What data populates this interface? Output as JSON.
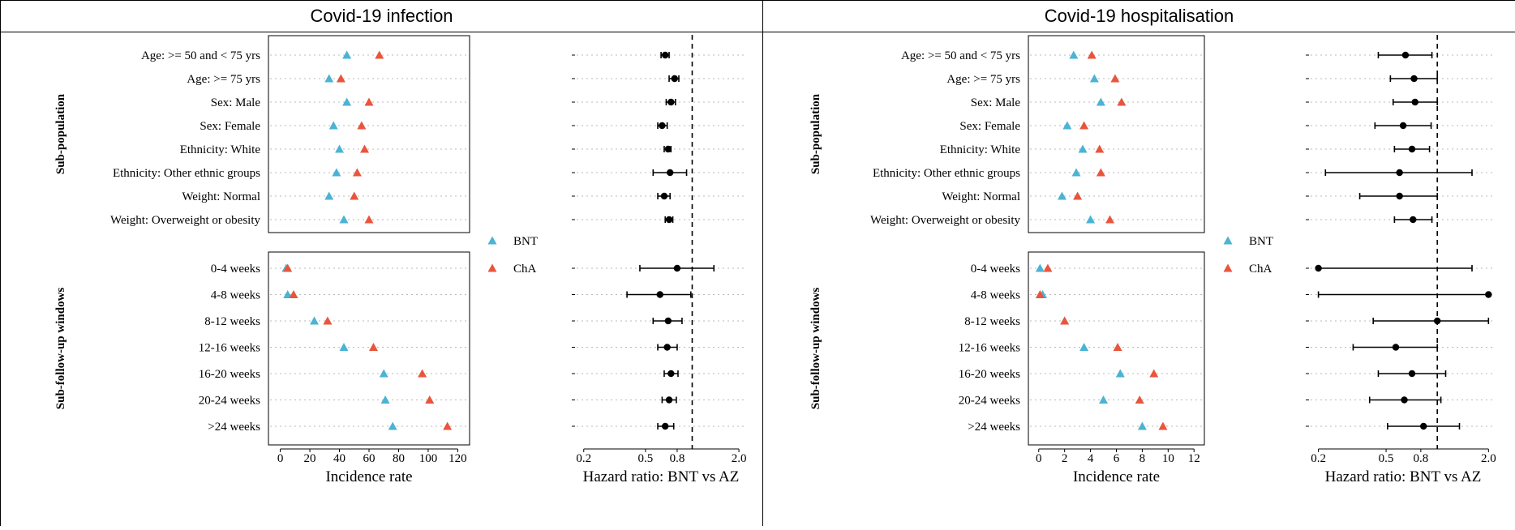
{
  "colors": {
    "bnt": "#4bb3d4",
    "cha": "#e9553c",
    "hr": "#000000"
  },
  "chart_data": [
    {
      "id": "infection",
      "title": "Covid-19 infection",
      "type": "scatter",
      "legend": [
        "BNT",
        "ChA"
      ],
      "groups": [
        {
          "label": "Sub-population",
          "rows": [
            {
              "label": "Age: >= 50 and < 75 yrs",
              "bnt": 45,
              "cha": 67,
              "hr": 0.67,
              "lo": 0.63,
              "hi": 0.71
            },
            {
              "label": "Age: >= 75 yrs",
              "bnt": 33,
              "cha": 41,
              "hr": 0.77,
              "lo": 0.71,
              "hi": 0.82
            },
            {
              "label": "Sex: Male",
              "bnt": 45,
              "cha": 60,
              "hr": 0.73,
              "lo": 0.68,
              "hi": 0.78
            },
            {
              "label": "Sex: Female",
              "bnt": 36,
              "cha": 55,
              "hr": 0.64,
              "lo": 0.6,
              "hi": 0.69
            },
            {
              "label": "Ethnicity: White",
              "bnt": 40,
              "cha": 57,
              "hr": 0.7,
              "lo": 0.66,
              "hi": 0.73
            },
            {
              "label": "Ethnicity: Other ethnic groups",
              "bnt": 38,
              "cha": 52,
              "hr": 0.72,
              "lo": 0.56,
              "hi": 0.92
            },
            {
              "label": "Weight: Normal",
              "bnt": 33,
              "cha": 50,
              "hr": 0.66,
              "lo": 0.6,
              "hi": 0.72
            },
            {
              "label": "Weight: Overweight or obesity",
              "bnt": 43,
              "cha": 60,
              "hr": 0.71,
              "lo": 0.67,
              "hi": 0.75
            }
          ],
          "xlim": [
            -8,
            128
          ],
          "ticks": [
            0,
            20,
            40,
            60,
            80,
            100,
            120
          ]
        },
        {
          "label": "Sub-follow-up windows",
          "rows": [
            {
              "label": "0-4 weeks",
              "bnt": 4,
              "cha": 5,
              "hr": 0.8,
              "lo": 0.46,
              "hi": 1.38
            },
            {
              "label": "4-8 weeks",
              "bnt": 5,
              "cha": 9,
              "hr": 0.62,
              "lo": 0.38,
              "hi": 0.98
            },
            {
              "label": "8-12 weeks",
              "bnt": 23,
              "cha": 32,
              "hr": 0.7,
              "lo": 0.56,
              "hi": 0.86
            },
            {
              "label": "12-16 weeks",
              "bnt": 43,
              "cha": 63,
              "hr": 0.69,
              "lo": 0.6,
              "hi": 0.8
            },
            {
              "label": "16-20 weeks",
              "bnt": 70,
              "cha": 96,
              "hr": 0.73,
              "lo": 0.66,
              "hi": 0.81
            },
            {
              "label": "20-24 weeks",
              "bnt": 71,
              "cha": 101,
              "hr": 0.71,
              "lo": 0.64,
              "hi": 0.79
            },
            {
              "label": ">24 weeks",
              "bnt": 76,
              "cha": 113,
              "hr": 0.67,
              "lo": 0.6,
              "hi": 0.76
            }
          ],
          "xlim": [
            -8,
            128
          ],
          "ticks": [
            0,
            20,
            40,
            60,
            80,
            100,
            120
          ]
        }
      ],
      "xlabel_left": "Incidence rate",
      "xlabel_right": "Hazard ratio: BNT vs AZ",
      "hr_ticks": [
        0.2,
        0.5,
        0.8,
        2.0
      ],
      "hr_tick_labels": [
        "0.2",
        "0.5",
        "0.8",
        "2.0"
      ],
      "hr_xlim": [
        0.18,
        2.2
      ],
      "hr_ref": 1.0
    },
    {
      "id": "hospitalisation",
      "title": "Covid-19 hospitalisation",
      "type": "scatter",
      "legend": [
        "BNT",
        "ChA"
      ],
      "groups": [
        {
          "label": "Sub-population",
          "rows": [
            {
              "label": "Age: >= 50 and < 75 yrs",
              "bnt": 2.7,
              "cha": 4.1,
              "hr": 0.65,
              "lo": 0.45,
              "hi": 0.93
            },
            {
              "label": "Age: >= 75 yrs",
              "bnt": 4.3,
              "cha": 5.9,
              "hr": 0.73,
              "lo": 0.53,
              "hi": 1.0
            },
            {
              "label": "Sex: Male",
              "bnt": 4.8,
              "cha": 6.4,
              "hr": 0.74,
              "lo": 0.55,
              "hi": 1.0
            },
            {
              "label": "Sex: Female",
              "bnt": 2.2,
              "cha": 3.5,
              "hr": 0.63,
              "lo": 0.43,
              "hi": 0.92
            },
            {
              "label": "Ethnicity: White",
              "bnt": 3.4,
              "cha": 4.7,
              "hr": 0.71,
              "lo": 0.56,
              "hi": 0.9
            },
            {
              "label": "Ethnicity: Other ethnic groups",
              "bnt": 2.9,
              "cha": 4.8,
              "hr": 0.6,
              "lo": 0.22,
              "hi": 1.6
            },
            {
              "label": "Weight: Normal",
              "bnt": 1.8,
              "cha": 3.0,
              "hr": 0.6,
              "lo": 0.35,
              "hi": 1.0
            },
            {
              "label": "Weight: Overweight or obesity",
              "bnt": 4.0,
              "cha": 5.5,
              "hr": 0.72,
              "lo": 0.56,
              "hi": 0.93
            }
          ],
          "xlim": [
            -0.8,
            12.8
          ],
          "ticks": [
            0,
            2,
            4,
            6,
            8,
            10,
            12
          ]
        },
        {
          "label": "Sub-follow-up windows",
          "rows": [
            {
              "label": "0-4 weeks",
              "bnt": 0.1,
              "cha": 0.7,
              "hr": 0.2,
              "lo": 0.2,
              "hi": 1.6
            },
            {
              "label": "4-8 weeks",
              "bnt": 0.3,
              "cha": 0.1,
              "hr": 2.0,
              "lo": 0.2,
              "hi": 2.0
            },
            {
              "label": "8-12 weeks",
              "bnt": 2.0,
              "cha": 2.0,
              "hr": 1.0,
              "lo": 0.42,
              "hi": 2.0
            },
            {
              "label": "12-16 weeks",
              "bnt": 3.5,
              "cha": 6.1,
              "hr": 0.57,
              "lo": 0.32,
              "hi": 1.0
            },
            {
              "label": "16-20 weeks",
              "bnt": 6.3,
              "cha": 8.9,
              "hr": 0.71,
              "lo": 0.45,
              "hi": 1.12
            },
            {
              "label": "20-24 weeks",
              "bnt": 5.0,
              "cha": 7.8,
              "hr": 0.64,
              "lo": 0.4,
              "hi": 1.05
            },
            {
              "label": ">24 weeks",
              "bnt": 8.0,
              "cha": 9.6,
              "hr": 0.83,
              "lo": 0.51,
              "hi": 1.35
            }
          ],
          "xlim": [
            -0.8,
            12.8
          ],
          "ticks": [
            0,
            2,
            4,
            6,
            8,
            10,
            12
          ]
        }
      ],
      "xlabel_left": "Incidence rate",
      "xlabel_right": "Hazard ratio: BNT vs AZ",
      "hr_ticks": [
        0.2,
        0.5,
        0.8,
        2.0
      ],
      "hr_tick_labels": [
        "0.2",
        "0.5",
        "0.8",
        "2.0"
      ],
      "hr_xlim": [
        0.18,
        2.2
      ],
      "hr_ref": 1.0
    }
  ]
}
